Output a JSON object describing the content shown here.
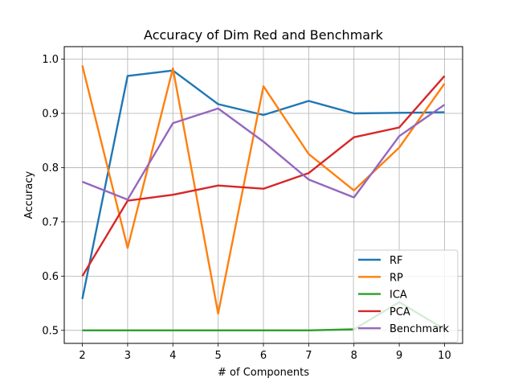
{
  "chart_data": {
    "type": "line",
    "title": "Accuracy of Dim Red and Benchmark",
    "xlabel": "# of Components",
    "ylabel": "Accuracy",
    "x": [
      2,
      3,
      4,
      5,
      6,
      7,
      8,
      9,
      10
    ],
    "xlim": [
      1.6,
      10.4
    ],
    "ylim": [
      0.476,
      1.023
    ],
    "xticks": [
      "2",
      "3",
      "4",
      "5",
      "6",
      "7",
      "8",
      "9",
      "10"
    ],
    "yticks": [
      0.5,
      0.6,
      0.7,
      0.8,
      0.9,
      1.0
    ],
    "ytick_labels": [
      "0.5",
      "0.6",
      "0.7",
      "0.8",
      "0.9",
      "1.0"
    ],
    "grid": true,
    "legend_position": "bottom-right",
    "series": [
      {
        "name": "RF",
        "color": "#1f77b4",
        "values": [
          0.558,
          0.969,
          0.979,
          0.917,
          0.897,
          0.923,
          0.9,
          0.901,
          0.902
        ]
      },
      {
        "name": "RP",
        "color": "#ff7f0e",
        "values": [
          0.988,
          0.652,
          0.983,
          0.531,
          0.95,
          0.825,
          0.758,
          0.837,
          0.955
        ]
      },
      {
        "name": "ICA",
        "color": "#2ca02c",
        "values": [
          0.5,
          0.5,
          0.5,
          0.5,
          0.5,
          0.5,
          0.502,
          0.552,
          0.502
        ]
      },
      {
        "name": "PCA",
        "color": "#d62728",
        "values": [
          0.6,
          0.739,
          0.75,
          0.767,
          0.761,
          0.79,
          0.856,
          0.874,
          0.969
        ]
      },
      {
        "name": "Benchmark",
        "color": "#9467bd",
        "values": [
          0.774,
          0.741,
          0.882,
          0.909,
          0.848,
          0.778,
          0.745,
          0.858,
          0.916
        ]
      }
    ]
  }
}
